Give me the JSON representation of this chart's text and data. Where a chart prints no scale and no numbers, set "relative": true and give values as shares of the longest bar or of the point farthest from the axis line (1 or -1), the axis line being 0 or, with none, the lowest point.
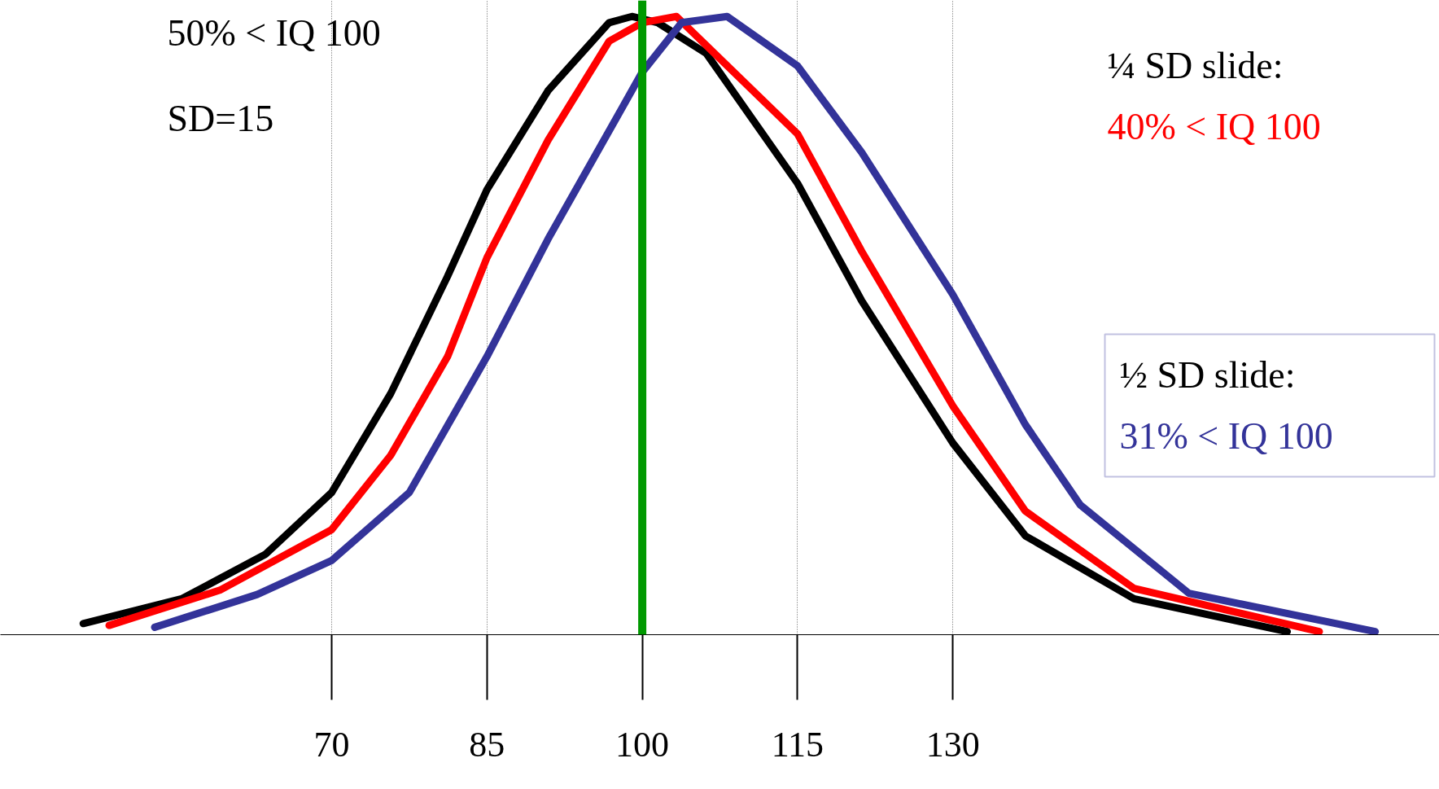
{
  "chart_data": {
    "type": "line",
    "relative": true,
    "xlim": [
      38,
      177
    ],
    "xticks": [
      70,
      85,
      100,
      115,
      130
    ],
    "grid": "x",
    "legend": false,
    "line_style": "solid",
    "marker": "none",
    "tick_labels": "x",
    "annotations": [
      "SD=15",
      "¼ SD slide:",
      "½ SD slide:"
    ],
    "ref_lines": [
      {
        "axis": "x",
        "value": 100,
        "color": "#009900"
      }
    ],
    "series": [
      {
        "name": "50% < IQ 100",
        "color": "#000000",
        "x": [
          46,
          55.5,
          63.6,
          70,
          75.7,
          81.2,
          85,
          90.9,
          96.8,
          99,
          101.5,
          106.2,
          115,
          121.2,
          130,
          137,
          147.5,
          162.3
        ],
        "values": [
          0.018,
          0.058,
          0.13,
          0.23,
          0.39,
          0.58,
          0.72,
          0.88,
          0.99,
          1.0,
          0.99,
          0.94,
          0.73,
          0.54,
          0.31,
          0.16,
          0.058,
          0.005
        ]
      },
      {
        "name": "40% < IQ 100",
        "color": "#ff0000",
        "x": [
          48.5,
          59.2,
          70,
          75.7,
          81.2,
          85,
          90.9,
          96.8,
          100,
          103.3,
          115,
          121.2,
          130,
          137,
          147.5,
          165.4
        ],
        "values": [
          0.015,
          0.072,
          0.17,
          0.29,
          0.45,
          0.61,
          0.8,
          0.96,
          0.99,
          1.0,
          0.81,
          0.62,
          0.37,
          0.2,
          0.075,
          0.005
        ]
      },
      {
        "name": "31% < IQ 100",
        "color": "#333399",
        "x": [
          52.9,
          62.8,
          70,
          77.5,
          85,
          90.9,
          100,
          103.8,
          108.2,
          115,
          121.2,
          130,
          137,
          142.3,
          152.8,
          170.8
        ],
        "values": [
          0.012,
          0.065,
          0.12,
          0.23,
          0.45,
          0.64,
          0.91,
          0.99,
          1.0,
          0.92,
          0.78,
          0.55,
          0.34,
          0.21,
          0.067,
          0.005
        ]
      }
    ]
  }
}
